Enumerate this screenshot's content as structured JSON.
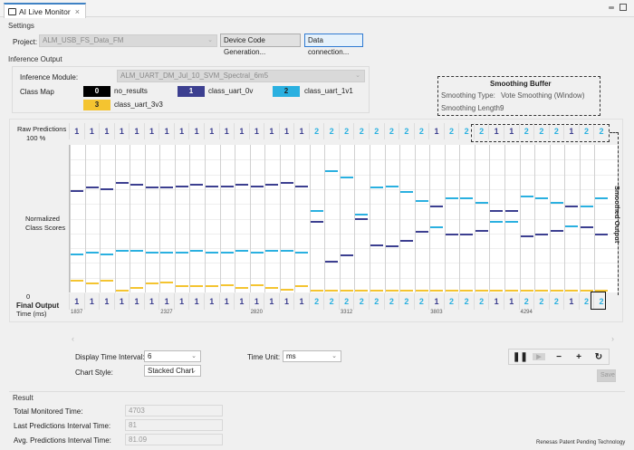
{
  "tab": {
    "title": "AI Live Monitor",
    "close_icon": "×"
  },
  "settings": {
    "section_label": "Settings",
    "project_label": "Project:",
    "project_value": "ALM_USB_FS_Data_FM",
    "device_code_button": "Device Code Generation...",
    "data_connection_button": "Data connection..."
  },
  "inference": {
    "section_label": "Inference Output",
    "module_label": "Inference Module:",
    "module_value": "ALM_UART_DM_Jul_10_SVM_Spectral_6m5",
    "class_map_label": "Class Map",
    "classes": [
      {
        "id": "0",
        "name": "no_results",
        "color": "#000000",
        "text_color": "#ffffff"
      },
      {
        "id": "1",
        "name": "class_uart_0v",
        "color": "#3c3f90",
        "text_color": "#ffffff"
      },
      {
        "id": "2",
        "name": "class_uart_1v1",
        "color": "#2ab0e0",
        "text_color": "#222222"
      },
      {
        "id": "3",
        "name": "class_uart_3v3",
        "color": "#f4c430",
        "text_color": "#222222"
      }
    ]
  },
  "smoothing": {
    "title": "Smoothing Buffer",
    "type_label": "Smoothing Type:",
    "type_value": "Vote Smoothing (Window)",
    "length_label": "Smoothing Length:",
    "length_value": "9"
  },
  "chart": {
    "raw_label": "Raw Predictions",
    "top_pct": "100 %",
    "ylabel_1": "Normalized",
    "ylabel_2": "Class Scores",
    "zero": "0",
    "final_label": "Final Output",
    "time_label": "Time (ms)",
    "smoothed_label": "Smoothed Output"
  },
  "chart_data": {
    "type": "line",
    "title": "AI Live Monitor - Normalized Class Scores",
    "xlabel": "Time (ms)",
    "ylabel": "Normalized Class Scores",
    "ylim": [
      0,
      1
    ],
    "x_tick_labels": [
      {
        "col": 0,
        "label": "1837"
      },
      {
        "col": 6,
        "label": "2327"
      },
      {
        "col": 12,
        "label": "2820"
      },
      {
        "col": 18,
        "label": "3312"
      },
      {
        "col": 24,
        "label": "3803"
      },
      {
        "col": 30,
        "label": "4294"
      }
    ],
    "raw_predictions": [
      1,
      1,
      1,
      1,
      1,
      1,
      1,
      1,
      1,
      1,
      1,
      1,
      1,
      1,
      1,
      1,
      2,
      2,
      2,
      2,
      2,
      2,
      2,
      2,
      1,
      2,
      2,
      2,
      1,
      1,
      2,
      2,
      2,
      1,
      2,
      2
    ],
    "final_output": [
      1,
      1,
      1,
      1,
      1,
      1,
      1,
      1,
      1,
      1,
      1,
      1,
      1,
      1,
      1,
      1,
      2,
      2,
      2,
      2,
      2,
      2,
      2,
      2,
      1,
      2,
      2,
      2,
      1,
      1,
      2,
      2,
      2,
      1,
      2,
      2
    ],
    "series": [
      {
        "name": "class_uart_0v",
        "color": "#3c3f90",
        "values": [
          0.69,
          0.71,
          0.7,
          0.74,
          0.73,
          0.71,
          0.71,
          0.72,
          0.73,
          0.72,
          0.72,
          0.73,
          0.72,
          0.73,
          0.74,
          0.72,
          0.48,
          0.21,
          0.25,
          0.5,
          0.32,
          0.31,
          0.35,
          0.41,
          0.58,
          0.39,
          0.39,
          0.42,
          0.55,
          0.55,
          0.38,
          0.39,
          0.42,
          0.58,
          0.44,
          0.39
        ]
      },
      {
        "name": "class_uart_1v1",
        "color": "#2ab0e0",
        "values": [
          0.26,
          0.27,
          0.26,
          0.28,
          0.28,
          0.27,
          0.27,
          0.27,
          0.28,
          0.27,
          0.27,
          0.28,
          0.27,
          0.28,
          0.28,
          0.27,
          0.55,
          0.82,
          0.78,
          0.53,
          0.71,
          0.72,
          0.68,
          0.62,
          0.44,
          0.64,
          0.64,
          0.61,
          0.48,
          0.48,
          0.65,
          0.64,
          0.61,
          0.45,
          0.58,
          0.64
        ]
      },
      {
        "name": "class_uart_3v3",
        "color": "#f4c430",
        "values": [
          0.08,
          0.06,
          0.08,
          0.01,
          0.03,
          0.06,
          0.07,
          0.04,
          0.04,
          0.04,
          0.05,
          0.03,
          0.05,
          0.03,
          0.02,
          0.04,
          0.01,
          0.01,
          0.01,
          0.01,
          0.01,
          0.01,
          0.01,
          0.01,
          0.01,
          0.01,
          0.01,
          0.01,
          0.01,
          0.01,
          0.01,
          0.01,
          0.01,
          0.01,
          0.01,
          0.01
        ]
      }
    ]
  },
  "controls": {
    "display_interval_label": "Display Time Interval:",
    "display_interval_value": "6",
    "time_unit_label": "Time Unit:",
    "time_unit_value": "ms",
    "chart_style_label": "Chart Style:",
    "chart_style_value": "Stacked Chart",
    "save_button": "Save"
  },
  "result": {
    "section_label": "Result",
    "rows": [
      {
        "label": "Total Monitored Time:",
        "value": "4703"
      },
      {
        "label": "Last Predictions Interval Time:",
        "value": "81"
      },
      {
        "label": "Avg. Predictions Interval Time:",
        "value": "81.09"
      }
    ]
  },
  "footer": {
    "text": "Renesas Patent Pending Technology"
  }
}
